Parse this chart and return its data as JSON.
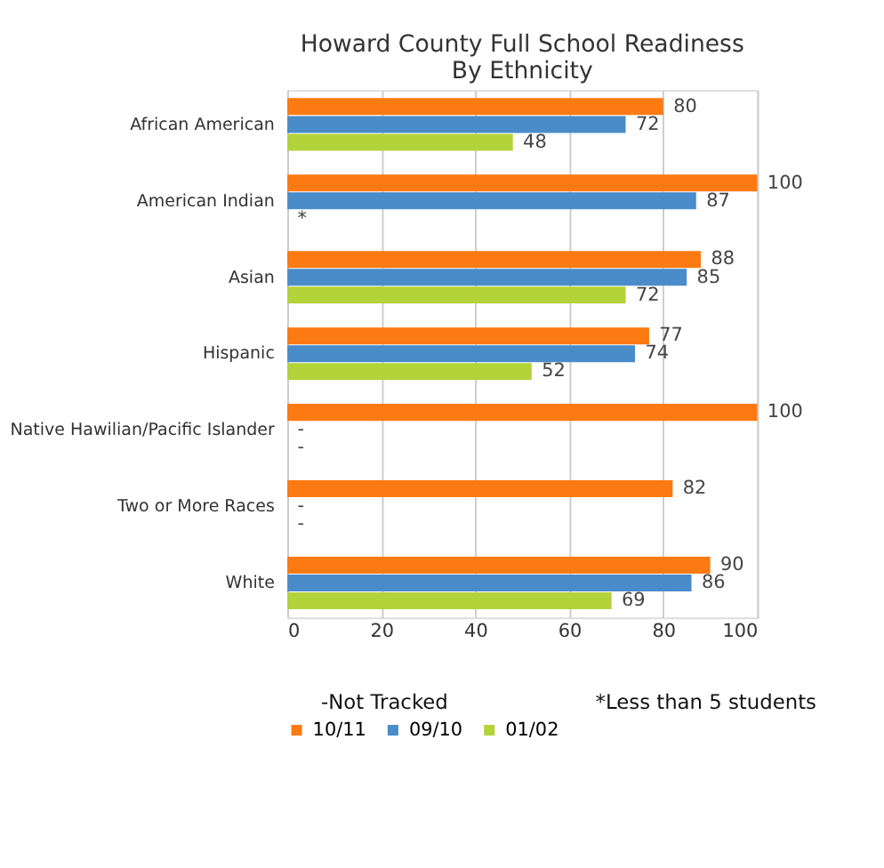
{
  "chart_data": {
    "type": "bar",
    "orientation": "horizontal",
    "title": "Howard County Full School Readiness\nBy Ethnicity",
    "categories": [
      "African American",
      "American Indian",
      "Asian",
      "Hispanic",
      "Native Hawilian/Pacific Islander",
      "Two or More Races",
      "White"
    ],
    "series": [
      {
        "name": "10/11",
        "color": "#fc7a12",
        "values": [
          80,
          100,
          88,
          77,
          100,
          82,
          90
        ],
        "value_labels": [
          "80",
          "100",
          "88",
          "77",
          "100",
          "82",
          "90"
        ]
      },
      {
        "name": "09/10",
        "color": "#4a8bc9",
        "values": [
          72,
          87,
          85,
          74,
          null,
          null,
          86
        ],
        "value_labels": [
          "72",
          "87",
          "85",
          "74",
          "-",
          "-",
          "86"
        ]
      },
      {
        "name": "01/02",
        "color": "#b3d33a",
        "values": [
          48,
          null,
          72,
          52,
          null,
          null,
          69
        ],
        "value_labels": [
          "48",
          "*",
          "72",
          "52",
          "-",
          "-",
          "69"
        ]
      }
    ],
    "xlim": [
      0,
      100
    ],
    "xticks": [
      0,
      20,
      40,
      60,
      80,
      100
    ],
    "grid": "x",
    "legend": "bottom",
    "annotations": [
      "-Not Tracked",
      "*Less than 5 students"
    ]
  }
}
